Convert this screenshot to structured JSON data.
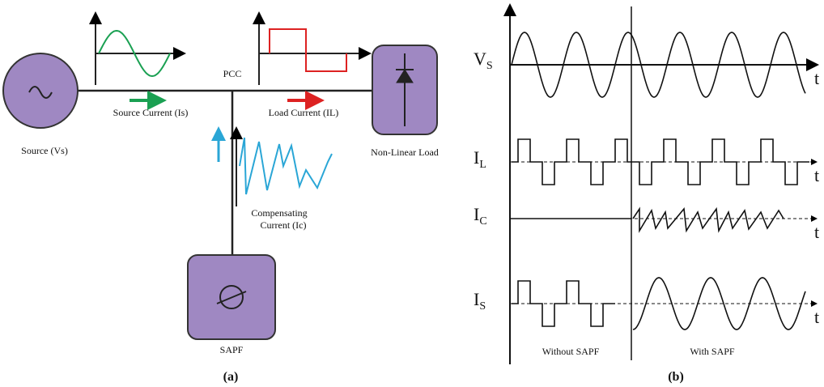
{
  "panel_a": {
    "source": "Source (Vs)",
    "source_current": "Source Current (Is)",
    "pcc": "PCC",
    "load_current": "Load Current (IL)",
    "load": "Non-Linear Load",
    "compensating_current": [
      "Compensating",
      "Current (Ic)"
    ],
    "sapf": "SAPF",
    "caption": "(a)"
  },
  "panel_b": {
    "axes": [
      {
        "symbol": "V",
        "subscript": "S",
        "end_label": "t"
      },
      {
        "symbol": "I",
        "subscript": "L",
        "end_label": "t"
      },
      {
        "symbol": "I",
        "subscript": "C",
        "end_label": "t"
      },
      {
        "symbol": "I",
        "subscript": "S",
        "end_label": "t"
      }
    ],
    "without": "Without SAPF",
    "with": "With SAPF",
    "caption": "(b)"
  }
}
